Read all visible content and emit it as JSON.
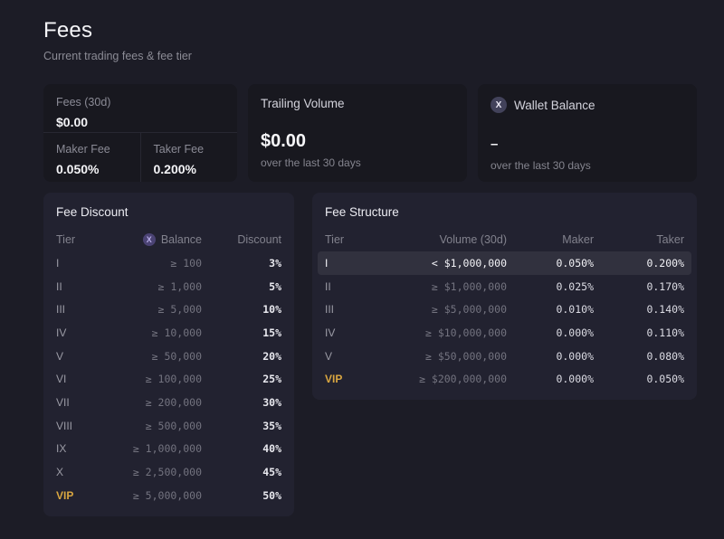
{
  "page": {
    "title": "Fees",
    "subtitle": "Current trading fees & fee tier"
  },
  "token": {
    "letter": "X"
  },
  "stats": {
    "fees": {
      "label": "Fees (30d)",
      "value": "$0.00"
    },
    "maker_fee": {
      "label": "Maker Fee",
      "value": "0.050%"
    },
    "taker_fee": {
      "label": "Taker Fee",
      "value": "0.200%"
    },
    "trailing_volume": {
      "label": "Trailing Volume",
      "value": "$0.00",
      "caption": "over the last 30 days"
    },
    "wallet_balance": {
      "label": "Wallet Balance",
      "value": "–",
      "caption": "over the last 30 days"
    }
  },
  "fee_discount": {
    "title": "Fee Discount",
    "columns": {
      "tier": "Tier",
      "balance": "Balance",
      "discount": "Discount"
    },
    "rows": [
      {
        "tier": "I",
        "balance": "≥ 100",
        "discount": "3%"
      },
      {
        "tier": "II",
        "balance": "≥ 1,000",
        "discount": "5%"
      },
      {
        "tier": "III",
        "balance": "≥ 5,000",
        "discount": "10%"
      },
      {
        "tier": "IV",
        "balance": "≥ 10,000",
        "discount": "15%"
      },
      {
        "tier": "V",
        "balance": "≥ 50,000",
        "discount": "20%"
      },
      {
        "tier": "VI",
        "balance": "≥ 100,000",
        "discount": "25%"
      },
      {
        "tier": "VII",
        "balance": "≥ 200,000",
        "discount": "30%"
      },
      {
        "tier": "VIII",
        "balance": "≥ 500,000",
        "discount": "35%"
      },
      {
        "tier": "IX",
        "balance": "≥ 1,000,000",
        "discount": "40%"
      },
      {
        "tier": "X",
        "balance": "≥ 2,500,000",
        "discount": "45%"
      },
      {
        "tier": "VIP",
        "balance": "≥ 5,000,000",
        "discount": "50%",
        "vip": true
      }
    ]
  },
  "fee_structure": {
    "title": "Fee Structure",
    "columns": {
      "tier": "Tier",
      "volume": "Volume (30d)",
      "maker": "Maker",
      "taker": "Taker"
    },
    "rows": [
      {
        "tier": "I",
        "volume": "< $1,000,000",
        "maker": "0.050%",
        "taker": "0.200%",
        "highlighted": true
      },
      {
        "tier": "II",
        "volume": "≥ $1,000,000",
        "maker": "0.025%",
        "taker": "0.170%"
      },
      {
        "tier": "III",
        "volume": "≥ $5,000,000",
        "maker": "0.010%",
        "taker": "0.140%"
      },
      {
        "tier": "IV",
        "volume": "≥ $10,000,000",
        "maker": "0.000%",
        "taker": "0.110%"
      },
      {
        "tier": "V",
        "volume": "≥ $50,000,000",
        "maker": "0.000%",
        "taker": "0.080%"
      },
      {
        "tier": "VIP",
        "volume": "≥ $200,000,000",
        "maker": "0.000%",
        "taker": "0.050%",
        "vip": true
      }
    ]
  },
  "colors": {
    "page_bg": "#1c1c26",
    "stat_card_bg": "#18181f",
    "panel_bg": "#222230",
    "highlight_row": "#31313e",
    "accent_gold": "#d9a640",
    "token_icon_bg": "#4b4374"
  }
}
